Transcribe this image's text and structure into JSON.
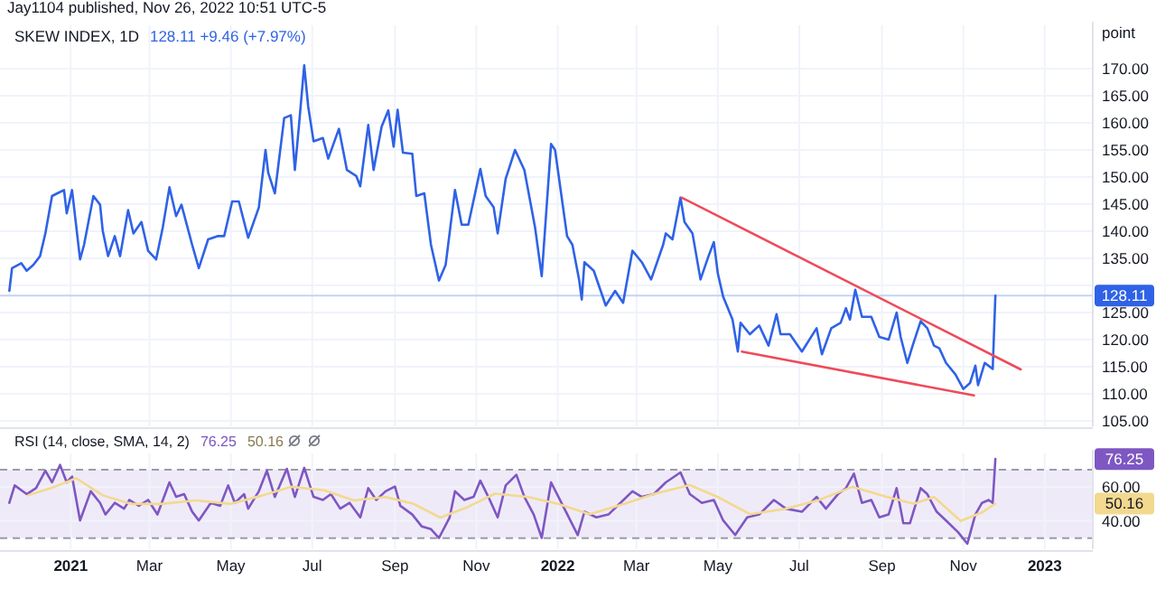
{
  "chart_data": [
    {
      "type": "line",
      "title": "SKEW INDEX, 1D",
      "subtitle": "Jay1104 published, Nov 26, 2022 10:51 UTC-5",
      "ylabel": "point",
      "annotations": [
        "128.11 +9.46 (+7.97%)"
      ],
      "xlim": [
        "2020-11-09",
        "2023-02-06"
      ],
      "xticks": [
        {
          "value": "2021-01-01",
          "label": null
        },
        {
          "value": "2021-03-01",
          "label": null
        },
        {
          "value": "2021-05-01",
          "label": null
        },
        {
          "value": "2021-07-01",
          "label": null
        },
        {
          "value": "2021-09-01",
          "label": null
        },
        {
          "value": "2021-11-01",
          "label": null
        },
        {
          "value": "2022-01-01",
          "label": null
        },
        {
          "value": "2022-03-01",
          "label": null
        },
        {
          "value": "2022-05-01",
          "label": null
        },
        {
          "value": "2022-07-01",
          "label": null
        },
        {
          "value": "2022-09-01",
          "label": null
        },
        {
          "value": "2022-11-01",
          "label": null
        },
        {
          "value": "2023-01-01",
          "label": null
        }
      ],
      "ylim": [
        104,
        178
      ],
      "yticks": [
        {
          "value": 105,
          "label": "105.00"
        },
        {
          "value": 110,
          "label": "110.00"
        },
        {
          "value": 115,
          "label": "115.00"
        },
        {
          "value": 120,
          "label": "120.00"
        },
        {
          "value": 125,
          "label": "125.00"
        },
        {
          "value": 130,
          "label": null
        },
        {
          "value": 135,
          "label": "135.00"
        },
        {
          "value": 140,
          "label": "140.00"
        },
        {
          "value": 145,
          "label": "145.00"
        },
        {
          "value": 150,
          "label": "150.00"
        },
        {
          "value": 155,
          "label": "155.00"
        },
        {
          "value": 160,
          "label": "160.00"
        },
        {
          "value": 165,
          "label": "165.00"
        },
        {
          "value": 170,
          "label": "170.00"
        }
      ],
      "grid": true,
      "tick_labels": "y",
      "ref_lines": [
        {
          "axis": "y",
          "value": 128.11,
          "label": "128.11",
          "color": "#c3d3f7"
        }
      ],
      "series": [
        {
          "color": "#2f62e6",
          "x": [
            "2020-11-16",
            "2020-11-18",
            "2020-11-25",
            "2020-11-29",
            "2020-12-04",
            "2020-12-09",
            "2020-12-13",
            "2020-12-18",
            "2020-12-22",
            "2020-12-27",
            "2020-12-29",
            "2021-01-02",
            "2021-01-08",
            "2021-01-11",
            "2021-01-18",
            "2021-01-23",
            "2021-01-25",
            "2021-01-29",
            "2021-02-03",
            "2021-02-07",
            "2021-02-13",
            "2021-02-17",
            "2021-02-23",
            "2021-02-28",
            "2021-03-06",
            "2021-03-11",
            "2021-03-16",
            "2021-03-21",
            "2021-03-25",
            "2021-04-02",
            "2021-04-07",
            "2021-04-14",
            "2021-04-21",
            "2021-04-26",
            "2021-05-02",
            "2021-05-07",
            "2021-05-14",
            "2021-05-22",
            "2021-05-27",
            "2021-05-29",
            "2021-06-03",
            "2021-06-10",
            "2021-06-15",
            "2021-06-18",
            "2021-06-21",
            "2021-06-25",
            "2021-06-28",
            "2021-07-02",
            "2021-07-09",
            "2021-07-13",
            "2021-07-21",
            "2021-07-27",
            "2021-08-03",
            "2021-08-06",
            "2021-08-12",
            "2021-08-16",
            "2021-08-22",
            "2021-08-27",
            "2021-08-31",
            "2021-09-03",
            "2021-09-07",
            "2021-09-14",
            "2021-09-17",
            "2021-09-23",
            "2021-09-28",
            "2021-10-04",
            "2021-10-09",
            "2021-10-16",
            "2021-10-21",
            "2021-10-26",
            "2021-11-04",
            "2021-11-08",
            "2021-11-14",
            "2021-11-17",
            "2021-11-23",
            "2021-11-30",
            "2021-12-07",
            "2021-12-15",
            "2021-12-20",
            "2021-12-27",
            "2021-12-30",
            "2022-01-08",
            "2022-01-12",
            "2022-01-17",
            "2022-01-19",
            "2022-01-21",
            "2022-01-28",
            "2022-02-06",
            "2022-02-13",
            "2022-02-19",
            "2022-02-26",
            "2022-03-05",
            "2022-03-12",
            "2022-03-21",
            "2022-03-23",
            "2022-03-28",
            "2022-04-03",
            "2022-04-06",
            "2022-04-12",
            "2022-04-18",
            "2022-04-24",
            "2022-04-28",
            "2022-05-01",
            "2022-05-05",
            "2022-05-12",
            "2022-05-16",
            "2022-05-18",
            "2022-05-25",
            "2022-06-01",
            "2022-06-08",
            "2022-06-14",
            "2022-06-17",
            "2022-06-24",
            "2022-07-03",
            "2022-07-14",
            "2022-07-18",
            "2022-07-25",
            "2022-08-01",
            "2022-08-05",
            "2022-08-08",
            "2022-08-12",
            "2022-08-17",
            "2022-08-24",
            "2022-08-30",
            "2022-09-06",
            "2022-09-12",
            "2022-09-15",
            "2022-09-20",
            "2022-09-24",
            "2022-09-30",
            "2022-10-05",
            "2022-10-10",
            "2022-10-14",
            "2022-10-19",
            "2022-10-26",
            "2022-11-01",
            "2022-11-06",
            "2022-11-10",
            "2022-11-12",
            "2022-11-17",
            "2022-11-23",
            "2022-11-25"
          ],
          "values": [
            129.0,
            133.2,
            134.1,
            132.7,
            133.8,
            135.4,
            139.6,
            146.5,
            147.0,
            147.6,
            143.3,
            147.6,
            134.8,
            137.5,
            146.5,
            144.9,
            140.1,
            135.4,
            139.1,
            135.4,
            143.9,
            139.6,
            141.7,
            136.4,
            134.8,
            140.7,
            148.1,
            142.8,
            144.9,
            137.5,
            133.2,
            138.5,
            139.1,
            139.1,
            145.5,
            145.5,
            138.8,
            144.4,
            155.0,
            150.8,
            147.0,
            160.9,
            161.4,
            151.3,
            159.3,
            170.6,
            163.0,
            156.6,
            157.2,
            153.4,
            158.9,
            151.3,
            150.2,
            148.3,
            159.6,
            151.3,
            159.3,
            162.3,
            155.6,
            162.4,
            154.5,
            154.3,
            146.5,
            147.0,
            137.5,
            130.9,
            133.8,
            147.6,
            141.2,
            141.2,
            151.5,
            146.5,
            144.4,
            139.6,
            149.7,
            155.0,
            151.3,
            140.7,
            131.7,
            156.1,
            155.0,
            139.1,
            137.5,
            131.1,
            127.4,
            134.3,
            132.7,
            126.3,
            129.0,
            126.8,
            136.4,
            134.3,
            131.1,
            137.5,
            139.6,
            138.5,
            146.2,
            141.7,
            139.6,
            131.1,
            135.4,
            138.0,
            132.2,
            127.9,
            123.7,
            117.8,
            123.1,
            121.0,
            122.6,
            118.9,
            124.7,
            121.0,
            121.0,
            117.8,
            122.1,
            117.3,
            122.1,
            123.1,
            125.8,
            123.7,
            129.2,
            124.2,
            124.2,
            120.5,
            120.0,
            125.0,
            120.5,
            115.7,
            118.9,
            123.4,
            122.1,
            118.9,
            118.4,
            115.7,
            113.6,
            110.9,
            112.0,
            115.2,
            111.6,
            115.7,
            114.6,
            128.11
          ]
        },
        {
          "type": "line",
          "color": "#ef4a5a",
          "x": [
            "2022-04-04",
            "2022-12-14"
          ],
          "values": [
            146.2,
            114.5
          ]
        },
        {
          "type": "line",
          "color": "#ef4a5a",
          "x": [
            "2022-05-19",
            "2022-11-09"
          ],
          "values": [
            117.8,
            109.7
          ]
        }
      ]
    },
    {
      "type": "line",
      "title": "RSI (14, close, SMA, 14, 2)",
      "annotations": [
        "76.25",
        "50.16",
        "76.25",
        "50.16"
      ],
      "xlim": [
        "2020-11-09",
        "2023-02-06"
      ],
      "xticks": [
        {
          "value": "2021-01-01",
          "label": "2021"
        },
        {
          "value": "2021-03-01",
          "label": "Mar"
        },
        {
          "value": "2021-05-01",
          "label": "May"
        },
        {
          "value": "2021-07-01",
          "label": "Jul"
        },
        {
          "value": "2021-09-01",
          "label": "Sep"
        },
        {
          "value": "2021-11-01",
          "label": "Nov"
        },
        {
          "value": "2022-01-01",
          "label": "2022"
        },
        {
          "value": "2022-03-01",
          "label": "Mar"
        },
        {
          "value": "2022-05-01",
          "label": "May"
        },
        {
          "value": "2022-07-01",
          "label": "Jul"
        },
        {
          "value": "2022-09-01",
          "label": "Sep"
        },
        {
          "value": "2022-11-01",
          "label": "Nov"
        },
        {
          "value": "2023-01-01",
          "label": "2023"
        }
      ],
      "ylim": [
        23.5,
        79.5
      ],
      "yticks": [
        {
          "value": 40,
          "label": "40.00"
        },
        {
          "value": 60,
          "label": "60.00"
        }
      ],
      "grid": true,
      "bands": [
        {
          "axis": "y",
          "from": 30,
          "to": 70,
          "color": "#efeaf8"
        }
      ],
      "ref_lines": [
        {
          "axis": "y",
          "value": 70,
          "color": "#9a9ca6",
          "line_style": "dashed"
        },
        {
          "axis": "y",
          "value": 30,
          "color": "#9a9ca6",
          "line_style": "dashed"
        }
      ],
      "series": [
        {
          "color": "#7e57c2",
          "x": [
            "2020-11-16",
            "2020-11-20",
            "2020-11-29",
            "2020-12-06",
            "2020-12-13",
            "2020-12-18",
            "2020-12-24",
            "2020-12-29",
            "2021-01-02",
            "2021-01-08",
            "2021-01-16",
            "2021-01-23",
            "2021-01-27",
            "2021-02-03",
            "2021-02-10",
            "2021-02-14",
            "2021-02-21",
            "2021-02-28",
            "2021-03-07",
            "2021-03-16",
            "2021-03-21",
            "2021-03-27",
            "2021-04-02",
            "2021-04-07",
            "2021-04-16",
            "2021-04-23",
            "2021-04-29",
            "2021-05-04",
            "2021-05-11",
            "2021-05-14",
            "2021-05-22",
            "2021-05-28",
            "2021-06-03",
            "2021-06-12",
            "2021-06-18",
            "2021-06-25",
            "2021-07-02",
            "2021-07-09",
            "2021-07-15",
            "2021-07-22",
            "2021-07-29",
            "2021-08-06",
            "2021-08-12",
            "2021-08-18",
            "2021-08-25",
            "2021-09-01",
            "2021-09-05",
            "2021-09-14",
            "2021-09-21",
            "2021-09-28",
            "2021-10-04",
            "2021-10-12",
            "2021-10-16",
            "2021-10-23",
            "2021-10-30",
            "2021-11-04",
            "2021-11-10",
            "2021-11-17",
            "2021-11-23",
            "2021-12-01",
            "2021-12-07",
            "2021-12-14",
            "2021-12-20",
            "2021-12-27",
            "2022-01-06",
            "2022-01-16",
            "2022-01-21",
            "2022-01-30",
            "2022-02-08",
            "2022-02-17",
            "2022-02-26",
            "2022-03-05",
            "2022-03-14",
            "2022-03-23",
            "2022-04-03",
            "2022-04-10",
            "2022-04-19",
            "2022-04-28",
            "2022-05-05",
            "2022-05-14",
            "2022-05-23",
            "2022-06-01",
            "2022-06-12",
            "2022-06-21",
            "2022-07-03",
            "2022-07-14",
            "2022-07-21",
            "2022-07-30",
            "2022-08-05",
            "2022-08-11",
            "2022-08-17",
            "2022-08-24",
            "2022-08-30",
            "2022-09-06",
            "2022-09-12",
            "2022-09-17",
            "2022-09-22",
            "2022-09-30",
            "2022-10-05",
            "2022-10-12",
            "2022-10-19",
            "2022-10-28",
            "2022-11-04",
            "2022-11-10",
            "2022-11-15",
            "2022-11-20",
            "2022-11-23",
            "2022-11-25"
          ],
          "values": [
            50.6,
            60.8,
            55.7,
            59.2,
            69.4,
            62.6,
            72.8,
            62.6,
            66.0,
            40.3,
            57.4,
            50.6,
            43.8,
            50.6,
            47.2,
            52.3,
            48.9,
            52.3,
            43.8,
            62.6,
            54.1,
            55.7,
            45.5,
            40.3,
            50.6,
            48.9,
            60.8,
            50.6,
            55.7,
            47.2,
            57.4,
            69.4,
            54.1,
            70.5,
            54.1,
            71.1,
            54.1,
            52.3,
            55.7,
            47.2,
            50.6,
            42.1,
            59.2,
            52.3,
            57.4,
            60.2,
            48.9,
            43.8,
            36.9,
            35.2,
            30.1,
            42.1,
            57.4,
            52.3,
            54.1,
            63.6,
            54.1,
            42.1,
            60.8,
            67.0,
            54.1,
            43.8,
            30.1,
            62.6,
            47.2,
            31.8,
            45.4,
            42.1,
            43.8,
            50.6,
            57.4,
            54.1,
            55.7,
            62.6,
            68.4,
            55.7,
            50.6,
            52.3,
            40.3,
            31.8,
            42.1,
            43.8,
            52.3,
            47.2,
            45.4,
            54.1,
            47.2,
            55.7,
            59.2,
            67.7,
            50.6,
            52.3,
            42.1,
            43.8,
            59.2,
            38.7,
            38.7,
            59.2,
            55.7,
            45.4,
            40.3,
            33.5,
            26.7,
            43.8,
            50.6,
            52.3,
            50.6,
            76.25
          ]
        },
        {
          "color": "#f3d98f",
          "x": [
            "2020-11-30",
            "2020-12-20",
            "2021-01-05",
            "2021-01-25",
            "2021-02-15",
            "2021-03-10",
            "2021-04-05",
            "2021-05-01",
            "2021-05-25",
            "2021-06-15",
            "2021-07-10",
            "2021-08-01",
            "2021-08-25",
            "2021-09-15",
            "2021-10-05",
            "2021-10-25",
            "2021-11-15",
            "2021-12-10",
            "2022-01-01",
            "2022-01-25",
            "2022-02-20",
            "2022-03-15",
            "2022-04-10",
            "2022-05-01",
            "2022-05-25",
            "2022-06-20",
            "2022-07-15",
            "2022-08-10",
            "2022-09-05",
            "2022-09-25",
            "2022-10-10",
            "2022-10-30",
            "2022-11-15",
            "2022-11-25"
          ],
          "values": [
            55,
            60,
            65,
            55,
            50,
            50,
            52,
            50,
            55,
            60,
            58,
            52,
            54,
            50,
            42,
            48,
            56,
            54,
            50,
            44,
            50,
            56,
            61,
            54,
            44,
            47,
            52,
            60,
            54,
            50,
            54,
            40,
            45,
            50.16
          ]
        }
      ]
    }
  ]
}
